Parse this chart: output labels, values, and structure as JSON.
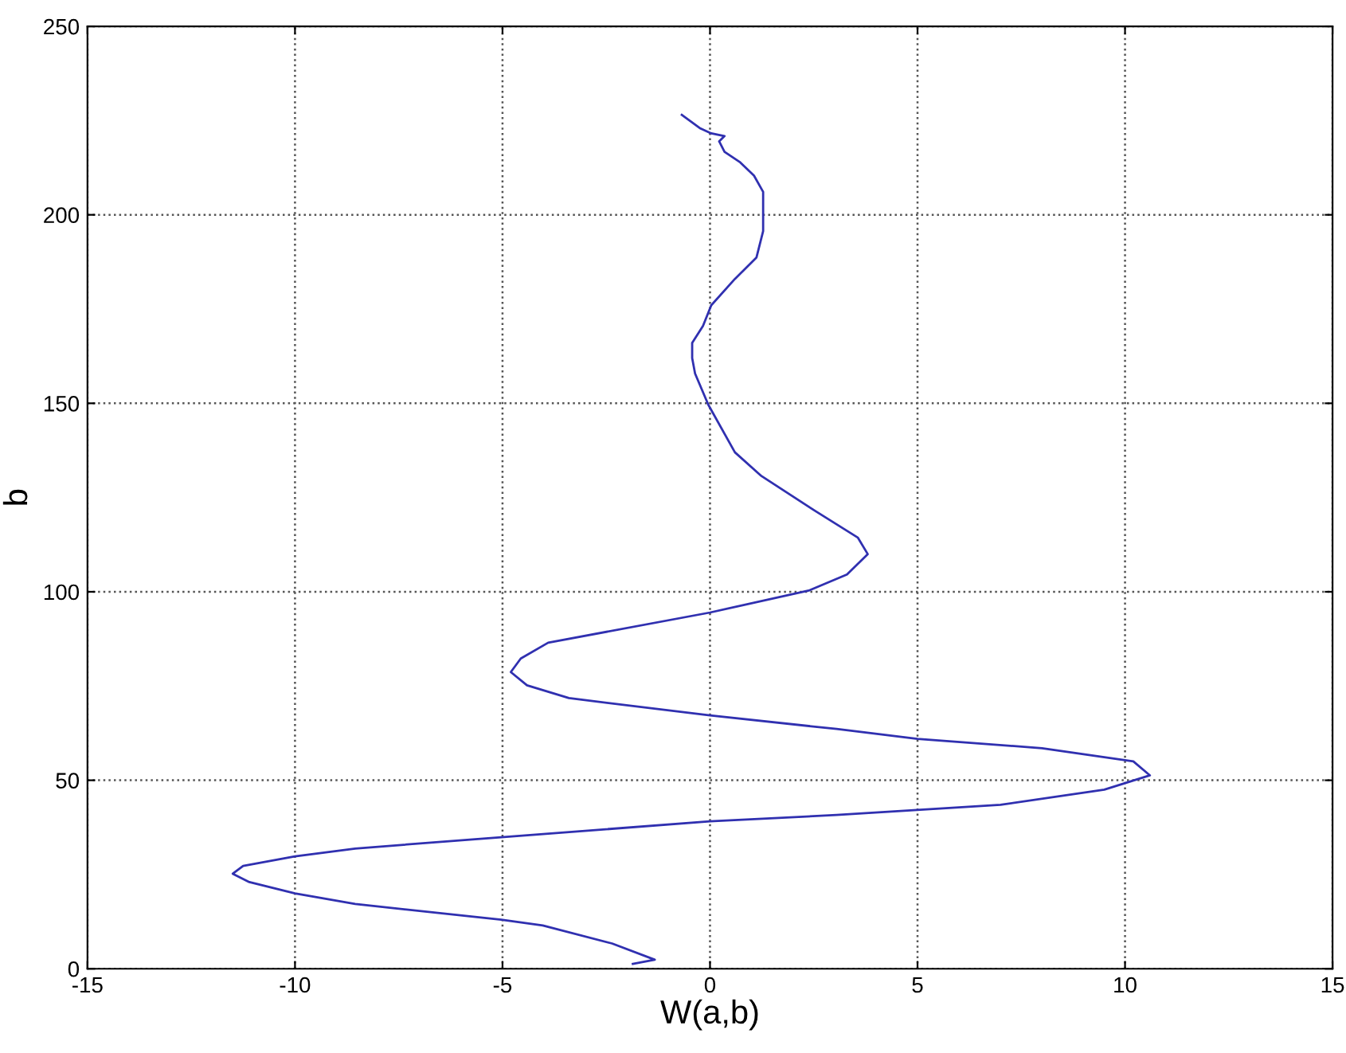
{
  "chart_data": {
    "type": "line",
    "xlabel": "W(a,b)",
    "ylabel": "b",
    "xlim": [
      -15,
      15
    ],
    "ylim": [
      0,
      250
    ],
    "xticks": [
      -15,
      -10,
      -5,
      0,
      5,
      10,
      15
    ],
    "yticks": [
      0,
      50,
      100,
      150,
      200,
      250
    ],
    "grid": true,
    "line_style": "solid",
    "marker": "none",
    "series": [
      {
        "color": "#3030b0",
        "x": [
          -1.86,
          -1.33,
          -2.36,
          -4.03,
          -5.03,
          -8.55,
          -10,
          -11.1,
          -11.5,
          -11.25,
          -10,
          -8.55,
          -5.03,
          0,
          3.05,
          7,
          9.5,
          10.6,
          10.2,
          8,
          5,
          3.05,
          0,
          -3.4,
          -4.41,
          -4.8,
          -4.56,
          -3.9,
          0,
          2.4,
          3.3,
          3.8,
          3.56,
          2.54,
          1.24,
          0.6,
          -0.04,
          -0.36,
          -0.43,
          -0.43,
          -0.17,
          0.03,
          0.6,
          1.12,
          1.28,
          1.28,
          1.06,
          0.73,
          0.35,
          0.22,
          0.35,
          0.03,
          -0.23,
          -0.68
        ],
        "values": [
          1.3,
          2.4,
          6.7,
          11.5,
          13,
          17.2,
          20,
          23,
          25.2,
          27.3,
          29.8,
          31.9,
          34.9,
          39.1,
          40.8,
          43.5,
          47.5,
          51.3,
          55,
          58.5,
          61,
          63.6,
          67.2,
          71.8,
          75.2,
          78.7,
          82.3,
          86.5,
          94.5,
          100.4,
          104.6,
          110,
          114.4,
          121.4,
          130.7,
          137,
          149.6,
          157.9,
          162,
          166,
          170.5,
          176,
          183,
          188.7,
          195.7,
          206.1,
          210.4,
          213.9,
          216.7,
          219.5,
          220.9,
          221.6,
          222.9,
          226.5
        ]
      }
    ]
  }
}
